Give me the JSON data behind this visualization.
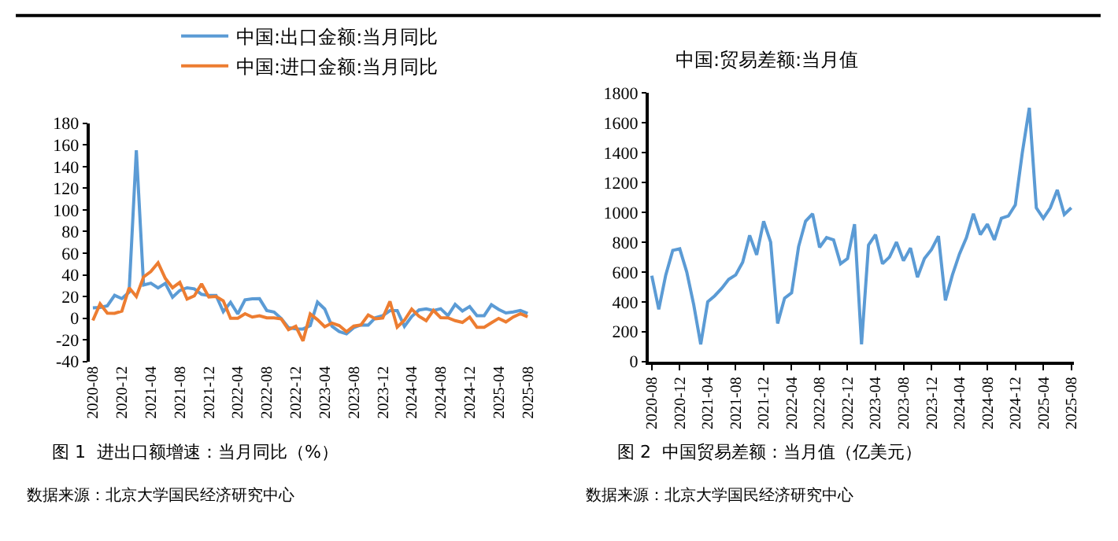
{
  "chart_data": [
    {
      "type": "line",
      "legend": "top",
      "line_style": "solid",
      "marker": "none",
      "categories": [
        "2020-08",
        null,
        null,
        null,
        "2020-12",
        null,
        null,
        null,
        "2021-04",
        null,
        null,
        null,
        "2021-08",
        null,
        null,
        null,
        "2021-12",
        null,
        null,
        null,
        "2022-04",
        null,
        null,
        null,
        "2022-08",
        null,
        null,
        null,
        "2022-12",
        null,
        null,
        null,
        "2023-04",
        null,
        null,
        null,
        "2023-08",
        null,
        null,
        null,
        "2023-12",
        null,
        null,
        null,
        "2024-04",
        null,
        null,
        null,
        "2024-08",
        null,
        null,
        null,
        "2024-12",
        null,
        null,
        null,
        "2025-04",
        null,
        null,
        null,
        "2025-08"
      ],
      "series": [
        {
          "name": "中国:出口金额:当月同比",
          "color": "#5b9bd5",
          "values": [
            9.5,
            9.9,
            11.4,
            21.1,
            18.1,
            24,
            155,
            30.6,
            32.3,
            27.9,
            32.2,
            19.3,
            25.6,
            28.1,
            27.1,
            22,
            20.9,
            21,
            6,
            14.7,
            3.9,
            16.9,
            17.9,
            18,
            7.1,
            5.7,
            -0.3,
            -8.7,
            -9.9,
            -10,
            -6.8,
            14.8,
            8.5,
            -7.5,
            -12.4,
            -14.5,
            -8.8,
            -6.2,
            -6.4,
            0.5,
            2.3,
            7,
            7,
            -7.5,
            1.5,
            7.6,
            8.6,
            7,
            8.7,
            2.4,
            12.7,
            6.7,
            10.7,
            2.3,
            2.3,
            12.4,
            8.1,
            4.8,
            5.8,
            7.2,
            4.4
          ]
        },
        {
          "name": "中国:进口金额:当月同比",
          "color": "#ed7d31",
          "values": [
            -2.1,
            13.2,
            4.7,
            4.5,
            6.5,
            28,
            20,
            38.1,
            43.1,
            51.1,
            36.7,
            28.1,
            33.1,
            17.6,
            20.6,
            31.7,
            19.5,
            20,
            16,
            -0.1,
            0,
            4.1,
            1,
            2.3,
            0.3,
            0.3,
            -0.7,
            -10.6,
            -7.5,
            -21,
            4,
            -1.4,
            -7.9,
            -4.5,
            -6.8,
            -12.4,
            -7.3,
            -6.2,
            3,
            -0.6,
            0.2,
            15.5,
            -8.2,
            -1.9,
            8.4,
            1.8,
            -2.3,
            7.2,
            0.5,
            0.3,
            -2.3,
            -3.9,
            1,
            -8.4,
            -8.4,
            -4.3,
            -0.2,
            -3.4,
            1.1,
            4.1,
            1.3
          ]
        }
      ],
      "ylim": [
        -40,
        180
      ],
      "yticks": [
        -40,
        -20,
        0,
        20,
        40,
        60,
        80,
        100,
        120,
        140,
        160,
        180
      ],
      "annotations": [
        "图 1  进出口额增速：当月同比（%）",
        "数据来源：北京大学国民经济研究中心"
      ]
    },
    {
      "type": "line",
      "legend": false,
      "line_style": "solid",
      "marker": "none",
      "title": "中国:贸易差额:当月值",
      "categories": [
        "2020-08",
        null,
        null,
        null,
        "2020-12",
        null,
        null,
        null,
        "2021-04",
        null,
        null,
        null,
        "2021-08",
        null,
        null,
        null,
        "2021-12",
        null,
        null,
        null,
        "2022-04",
        null,
        null,
        null,
        "2022-08",
        null,
        null,
        null,
        "2022-12",
        null,
        null,
        null,
        "2023-04",
        null,
        null,
        null,
        "2023-08",
        null,
        null,
        null,
        "2023-12",
        null,
        null,
        null,
        "2024-04",
        null,
        null,
        null,
        "2024-08",
        null,
        null,
        null,
        "2024-12",
        null,
        null,
        null,
        "2025-04",
        null,
        null,
        null,
        "2025-08"
      ],
      "series": [
        {
          "color": "#5b9bd5",
          "values": [
            575,
            350,
            580,
            745,
            755,
            600,
            380,
            115,
            400,
            440,
            490,
            550,
            580,
            665,
            845,
            715,
            940,
            800,
            255,
            425,
            460,
            770,
            940,
            990,
            765,
            830,
            815,
            655,
            690,
            920,
            115,
            780,
            850,
            655,
            700,
            800,
            675,
            760,
            565,
            690,
            750,
            840,
            410,
            580,
            720,
            830,
            990,
            850,
            920,
            815,
            960,
            975,
            1050,
            1400,
            1700,
            1030,
            960,
            1030,
            1150,
            985,
            1030
          ]
        }
      ],
      "ylim": [
        0,
        1800
      ],
      "yticks": [
        0,
        200,
        400,
        600,
        800,
        1000,
        1200,
        1400,
        1600,
        1800
      ],
      "annotations": [
        "图 2  中国贸易差额：当月值（亿美元）",
        "数据来源：北京大学国民经济研究中心"
      ]
    }
  ]
}
